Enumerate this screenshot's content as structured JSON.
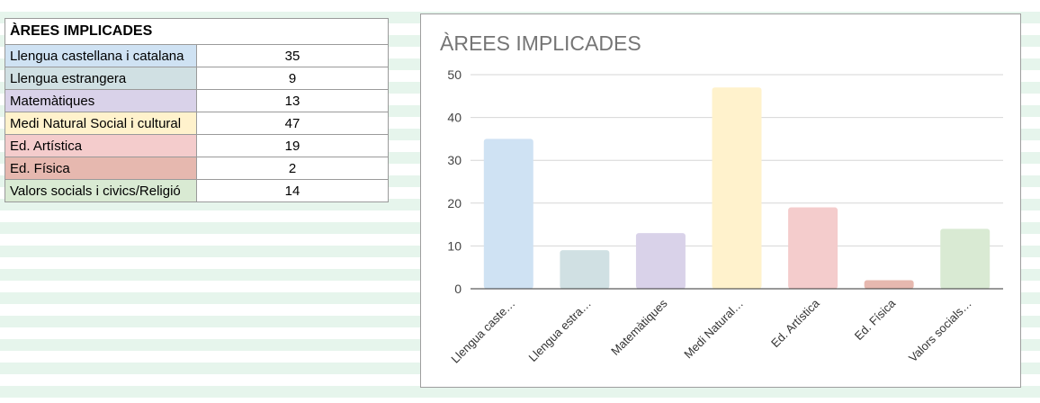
{
  "table": {
    "header": "ÀREES IMPLICADES",
    "rows": [
      {
        "label": "Llengua castellana i catalana",
        "value": "35",
        "color": "#cfe2f3"
      },
      {
        "label": "Llengua estrangera",
        "value": "9",
        "color": "#d0e0e3"
      },
      {
        "label": "Matemàtiques",
        "value": "13",
        "color": "#d9d2e9"
      },
      {
        "label": "Medi Natural Social i cultural",
        "value": "47",
        "color": "#fff2cc"
      },
      {
        "label": "Ed. Artística",
        "value": "19",
        "color": "#f4cccc"
      },
      {
        "label": "Ed. Física",
        "value": "2",
        "color": "#e6b8af"
      },
      {
        "label": "Valors socials i civics/Religió",
        "value": "14",
        "color": "#d9ead3"
      }
    ]
  },
  "chart_data": {
    "type": "bar",
    "title": "ÀREES IMPLICADES",
    "categories": [
      "Llengua caste…",
      "Llengua estra…",
      "Matemàtiques",
      "Medi Natural…",
      "Ed. Artística",
      "Ed. Física",
      "Valors socials…"
    ],
    "values": [
      35,
      9,
      13,
      47,
      19,
      2,
      14
    ],
    "colors": [
      "#cfe2f3",
      "#d0e0e3",
      "#d9d2e9",
      "#fff2cc",
      "#f4cccc",
      "#e6b8af",
      "#d9ead3"
    ],
    "yticks": [
      "0",
      "10",
      "20",
      "30",
      "40",
      "50"
    ],
    "ylim": [
      0,
      50
    ],
    "grid": true,
    "legend": "none"
  }
}
